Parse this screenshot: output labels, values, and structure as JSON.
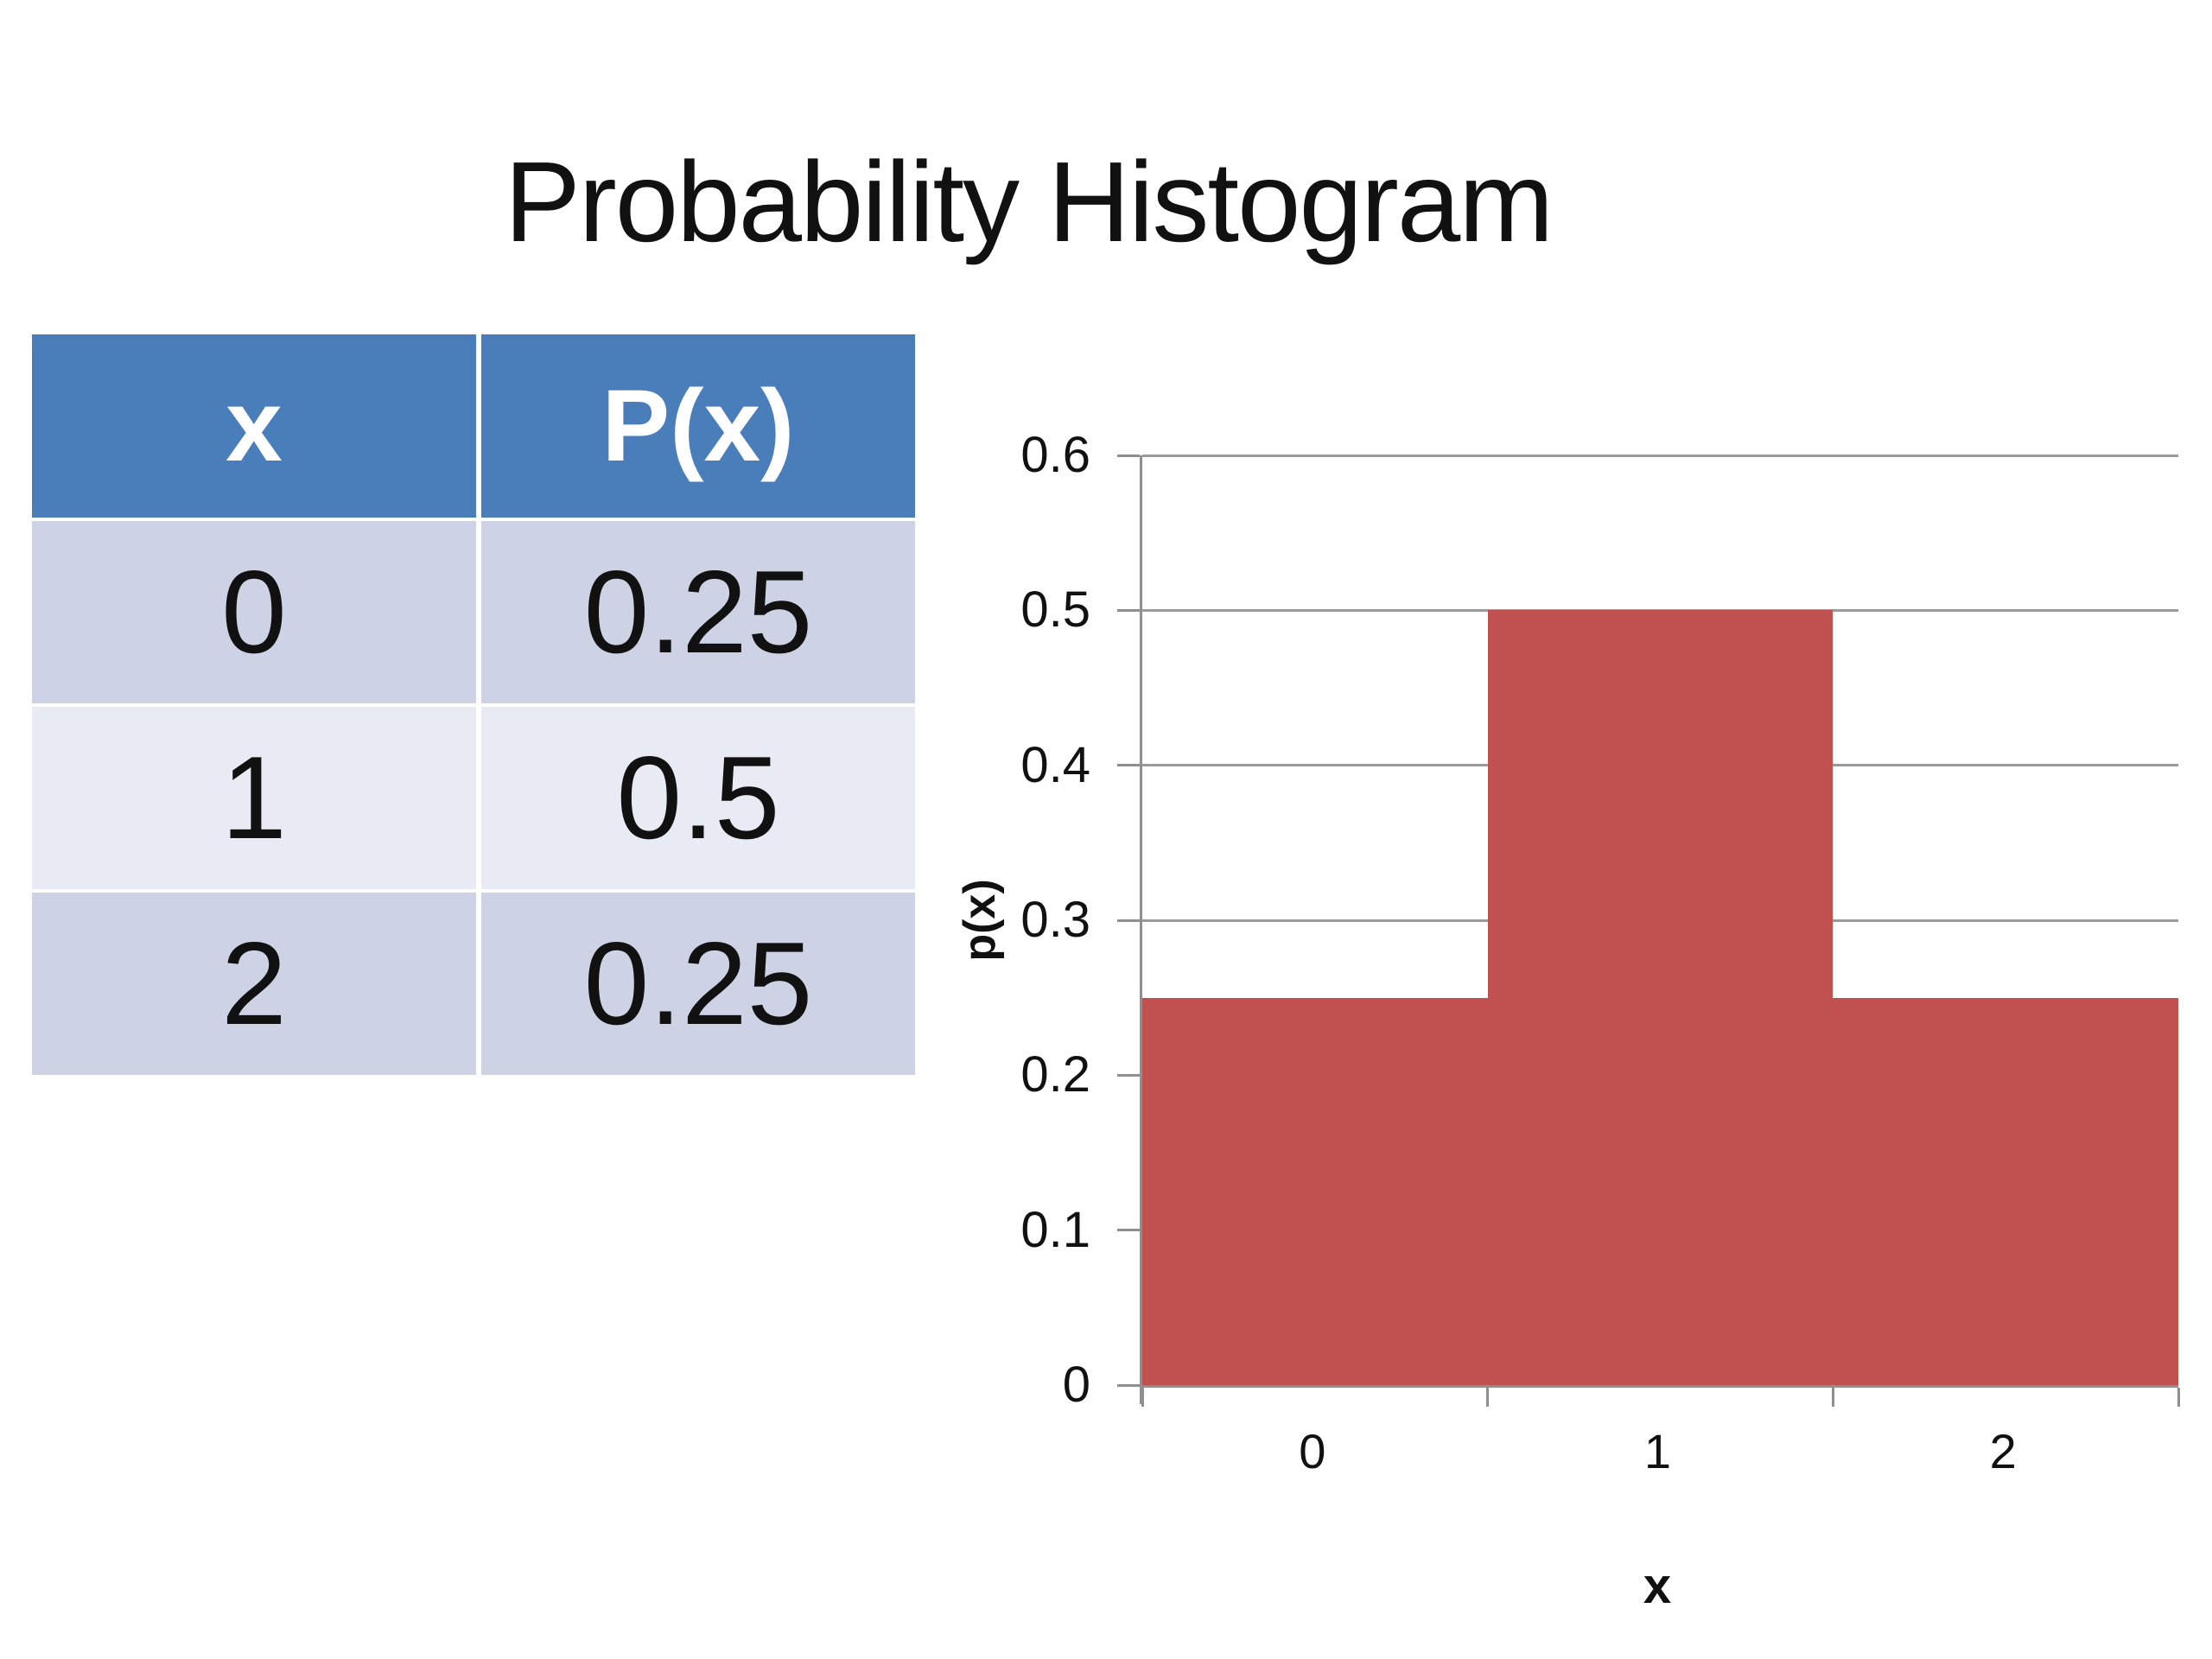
{
  "title": "Probability Histogram",
  "table": {
    "headers": [
      "x",
      "P(x)"
    ],
    "rows": [
      [
        "0",
        "0.25"
      ],
      [
        "1",
        "0.5"
      ],
      [
        "2",
        "0.25"
      ]
    ]
  },
  "chart_data": {
    "type": "bar",
    "categories": [
      "0",
      "1",
      "2"
    ],
    "values": [
      0.25,
      0.5,
      0.25
    ],
    "title": "",
    "xlabel": "x",
    "ylabel": "p(x)",
    "ylim": [
      0,
      0.6
    ],
    "yticks": [
      0,
      0.1,
      0.2,
      0.3,
      0.4,
      0.5,
      0.6
    ],
    "ytick_labels": [
      "0",
      "0.1",
      "0.2",
      "0.3",
      "0.4",
      "0.5",
      "0.6"
    ],
    "grid": true,
    "legend": false,
    "bars_contiguous": true,
    "bar_color": "#C15150",
    "axis_color": "#8F8F8F",
    "gridline_color": "#9A9A9A"
  },
  "colors": {
    "background": "#FFFFFF",
    "title_text": "#111111",
    "table_header_bg": "#4A7EBB",
    "table_header_text": "#FFFFFF",
    "table_row_dark": "#CDD3E5",
    "table_row_light": "#E9EBF4",
    "table_cell_text": "#111111"
  }
}
